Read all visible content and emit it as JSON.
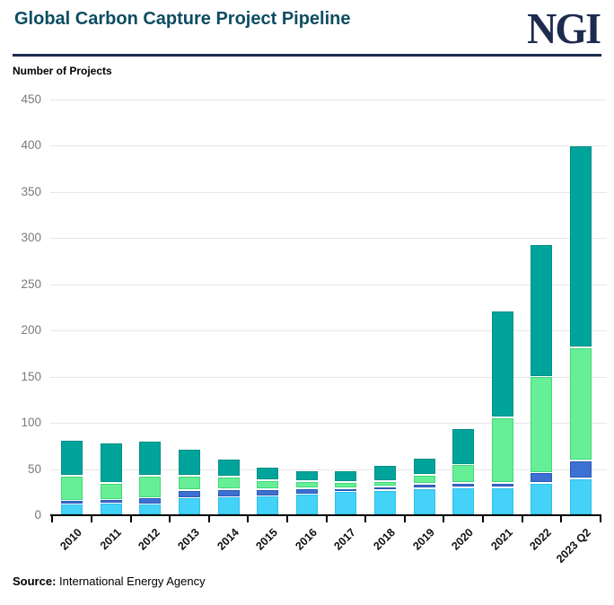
{
  "header": {
    "title": "Global Carbon Capture Project Pipeline",
    "logo": "NGI"
  },
  "source": {
    "label": "Source:",
    "text": " International Energy Agency"
  },
  "chart_data": {
    "type": "bar",
    "stacked": true,
    "title": "Global Carbon Capture Project Pipeline",
    "ylabel": "Number of Projects",
    "xlabel": "",
    "ylim": [
      0,
      450
    ],
    "yticks": [
      0,
      50,
      100,
      150,
      200,
      250,
      300,
      350,
      400,
      450
    ],
    "grid": true,
    "legend_position": "none",
    "categories": [
      "2010",
      "2011",
      "2012",
      "2013",
      "2014",
      "2015",
      "2016",
      "2017",
      "2018",
      "2019",
      "2020",
      "2021",
      "2022",
      "2023 Q2"
    ],
    "series": [
      {
        "name": "segment-1-light-blue",
        "color": "#45d2f8",
        "border": "#2fbfe9",
        "values": [
          12,
          13,
          12,
          19,
          20,
          21,
          23,
          26,
          27,
          29,
          30,
          30,
          35,
          40
        ]
      },
      {
        "name": "segment-2-dark-blue",
        "color": "#3c70d2",
        "border": "#2c59b5",
        "values": [
          4,
          4,
          7,
          8,
          8,
          7,
          6,
          3,
          4,
          5,
          5,
          5,
          11,
          19
        ]
      },
      {
        "name": "segment-3-light-green",
        "color": "#66ef96",
        "border": "#43d877",
        "values": [
          27,
          18,
          24,
          16,
          14,
          10,
          8,
          7,
          6,
          10,
          20,
          71,
          104,
          123
        ]
      },
      {
        "name": "segment-4-teal",
        "color": "#00a49a",
        "border": "#008f87",
        "values": [
          38,
          44,
          37,
          29,
          19,
          14,
          11,
          12,
          17,
          18,
          39,
          115,
          143,
          218
        ]
      }
    ],
    "totals": [
      81,
      79,
      80,
      72,
      61,
      52,
      48,
      48,
      54,
      62,
      94,
      221,
      293,
      400
    ]
  },
  "colors": {
    "title": "#0d4d63",
    "brand_navy": "#1e2b4f",
    "gridline": "#e7e7e7",
    "ytick_text": "#7a7a7a"
  }
}
